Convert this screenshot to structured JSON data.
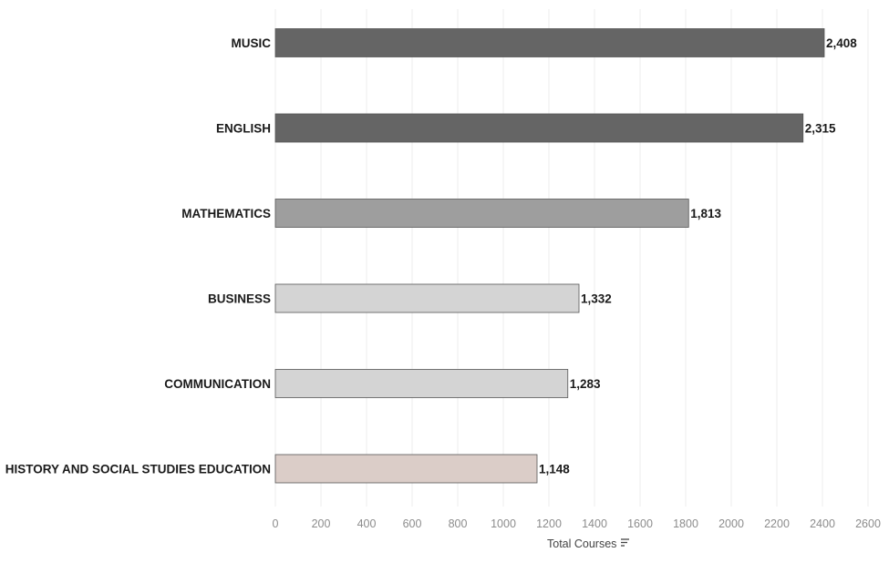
{
  "chart_data": {
    "type": "bar",
    "orientation": "horizontal",
    "categories": [
      "MUSIC",
      "ENGLISH",
      "MATHEMATICS",
      "BUSINESS",
      "COMMUNICATION",
      "HISTORY AND SOCIAL STUDIES EDUCATION"
    ],
    "values": [
      2408,
      2315,
      1813,
      1332,
      1283,
      1148
    ],
    "value_labels": [
      "2,408",
      "2,315",
      "1,813",
      "1,332",
      "1,283",
      "1,148"
    ],
    "bar_colors": [
      "#656565",
      "#656565",
      "#9e9e9e",
      "#d4d4d4",
      "#d4d4d4",
      "#dbcdc8"
    ],
    "xlabel": "Total Courses",
    "xlim": [
      0,
      2600
    ],
    "xticks": [
      0,
      200,
      400,
      600,
      800,
      1000,
      1200,
      1400,
      1600,
      1800,
      2000,
      2200,
      2400,
      2600
    ],
    "grid": "vertical",
    "sort_icon": "sort-descending-icon"
  }
}
